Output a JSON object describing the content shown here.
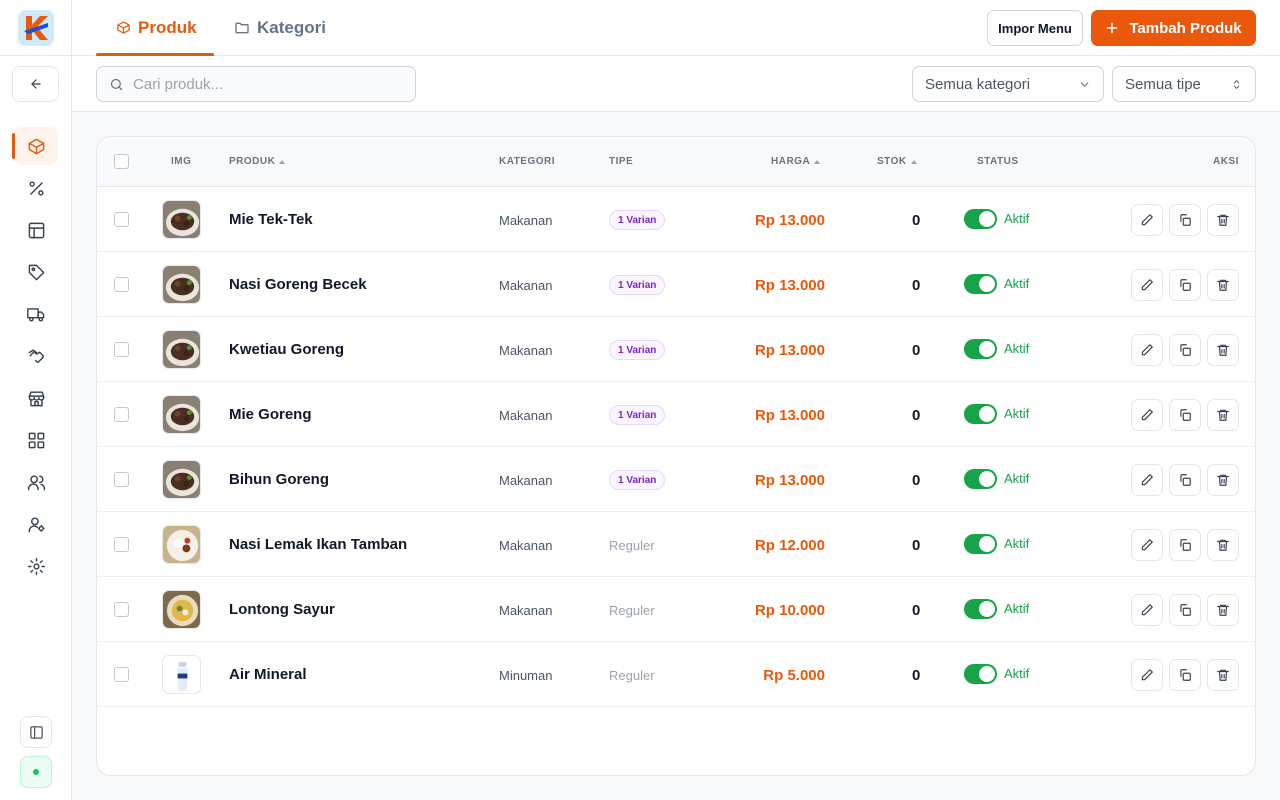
{
  "nav": {
    "tabs": [
      {
        "label": "Produk",
        "active": true,
        "icon": "box-icon"
      },
      {
        "label": "Kategori",
        "active": false,
        "icon": "folder-icon"
      }
    ],
    "import_label": "Impor Menu",
    "add_label": "Tambah Produk"
  },
  "sidebar": {
    "items": [
      {
        "icon": "box-icon",
        "active": true
      },
      {
        "icon": "percent-icon",
        "active": false
      },
      {
        "icon": "layout-icon",
        "active": false
      },
      {
        "icon": "tag-icon",
        "active": false
      },
      {
        "icon": "truck-icon",
        "active": false
      },
      {
        "icon": "handshake-icon",
        "active": false
      },
      {
        "icon": "store-icon",
        "active": false
      },
      {
        "icon": "grid-icon",
        "active": false
      },
      {
        "icon": "users-icon",
        "active": false
      },
      {
        "icon": "user-settings-icon",
        "active": false
      },
      {
        "icon": "gear-icon",
        "active": false
      }
    ]
  },
  "filters": {
    "search_placeholder": "Cari produk...",
    "category_select": "Semua kategori",
    "type_select": "Semua tipe"
  },
  "table": {
    "columns": {
      "img": "IMG",
      "produk": "PRODUK",
      "kategori": "KATEGORI",
      "tipe": "TIPE",
      "harga": "HARGA",
      "stok": "STOK",
      "status": "STATUS",
      "aksi": "AKSI"
    },
    "rows": [
      {
        "name": "Mie Tek-Tek",
        "category": "Makanan",
        "type": "1 Varian",
        "type_badge": true,
        "price": "Rp 13.000",
        "stock": "0",
        "status": "Aktif",
        "active": true,
        "thumb": "fried"
      },
      {
        "name": "Nasi Goreng Becek",
        "category": "Makanan",
        "type": "1 Varian",
        "type_badge": true,
        "price": "Rp 13.000",
        "stock": "0",
        "status": "Aktif",
        "active": true,
        "thumb": "fried"
      },
      {
        "name": "Kwetiau Goreng",
        "category": "Makanan",
        "type": "1 Varian",
        "type_badge": true,
        "price": "Rp 13.000",
        "stock": "0",
        "status": "Aktif",
        "active": true,
        "thumb": "fried"
      },
      {
        "name": "Mie Goreng",
        "category": "Makanan",
        "type": "1 Varian",
        "type_badge": true,
        "price": "Rp 13.000",
        "stock": "0",
        "status": "Aktif",
        "active": true,
        "thumb": "fried"
      },
      {
        "name": "Bihun Goreng",
        "category": "Makanan",
        "type": "1 Varian",
        "type_badge": true,
        "price": "Rp 13.000",
        "stock": "0",
        "status": "Aktif",
        "active": true,
        "thumb": "fried"
      },
      {
        "name": "Nasi Lemak Ikan Tamban",
        "category": "Makanan",
        "type": "Reguler",
        "type_badge": false,
        "price": "Rp 12.000",
        "stock": "0",
        "status": "Aktif",
        "active": true,
        "thumb": "plate"
      },
      {
        "name": "Lontong Sayur",
        "category": "Makanan",
        "type": "Reguler",
        "type_badge": false,
        "price": "Rp 10.000",
        "stock": "0",
        "status": "Aktif",
        "active": true,
        "thumb": "bowl"
      },
      {
        "name": "Air Mineral",
        "category": "Minuman",
        "type": "Reguler",
        "type_badge": false,
        "price": "Rp 5.000",
        "stock": "0",
        "status": "Aktif",
        "active": true,
        "thumb": "bottle"
      }
    ]
  },
  "colors": {
    "accent": "#ea580c",
    "success": "#16a34a",
    "badge_purple": "#7e22ce"
  }
}
